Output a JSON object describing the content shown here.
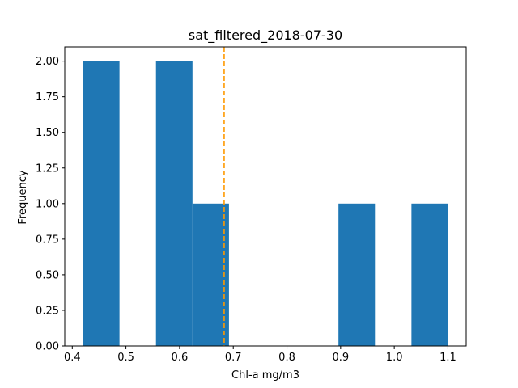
{
  "chart_data": {
    "type": "bar",
    "title": "sat_filtered_2018-07-30",
    "xlabel": "Chl-a mg/m3",
    "ylabel": "Frequency",
    "bins": [
      {
        "x0": 0.42,
        "x1": 0.488,
        "count": 2
      },
      {
        "x0": 0.488,
        "x1": 0.556,
        "count": 0
      },
      {
        "x0": 0.556,
        "x1": 0.624,
        "count": 2
      },
      {
        "x0": 0.624,
        "x1": 0.692,
        "count": 1
      },
      {
        "x0": 0.692,
        "x1": 0.76,
        "count": 0
      },
      {
        "x0": 0.76,
        "x1": 0.828,
        "count": 0
      },
      {
        "x0": 0.828,
        "x1": 0.896,
        "count": 0
      },
      {
        "x0": 0.896,
        "x1": 0.964,
        "count": 1
      },
      {
        "x0": 0.964,
        "x1": 1.032,
        "count": 0
      },
      {
        "x0": 1.032,
        "x1": 1.1,
        "count": 1
      }
    ],
    "mean_line": 0.683,
    "xlim": [
      0.386,
      1.134
    ],
    "ylim": [
      0,
      2.1
    ],
    "xticks": [
      0.4,
      0.5,
      0.6,
      0.7,
      0.8,
      0.9,
      1.0,
      1.1
    ],
    "xtick_labels": [
      "0.4",
      "0.5",
      "0.6",
      "0.7",
      "0.8",
      "0.9",
      "1.0",
      "1.1"
    ],
    "yticks": [
      0,
      0.25,
      0.5,
      0.75,
      1.0,
      1.25,
      1.5,
      1.75,
      2.0
    ],
    "ytick_labels": [
      "0.00",
      "0.25",
      "0.50",
      "0.75",
      "1.00",
      "1.25",
      "1.50",
      "1.75",
      "2.00"
    ],
    "grid": false,
    "colors": {
      "bar": "#1f77b4",
      "mean_line": "#ff9900",
      "axis": "#000000"
    }
  }
}
